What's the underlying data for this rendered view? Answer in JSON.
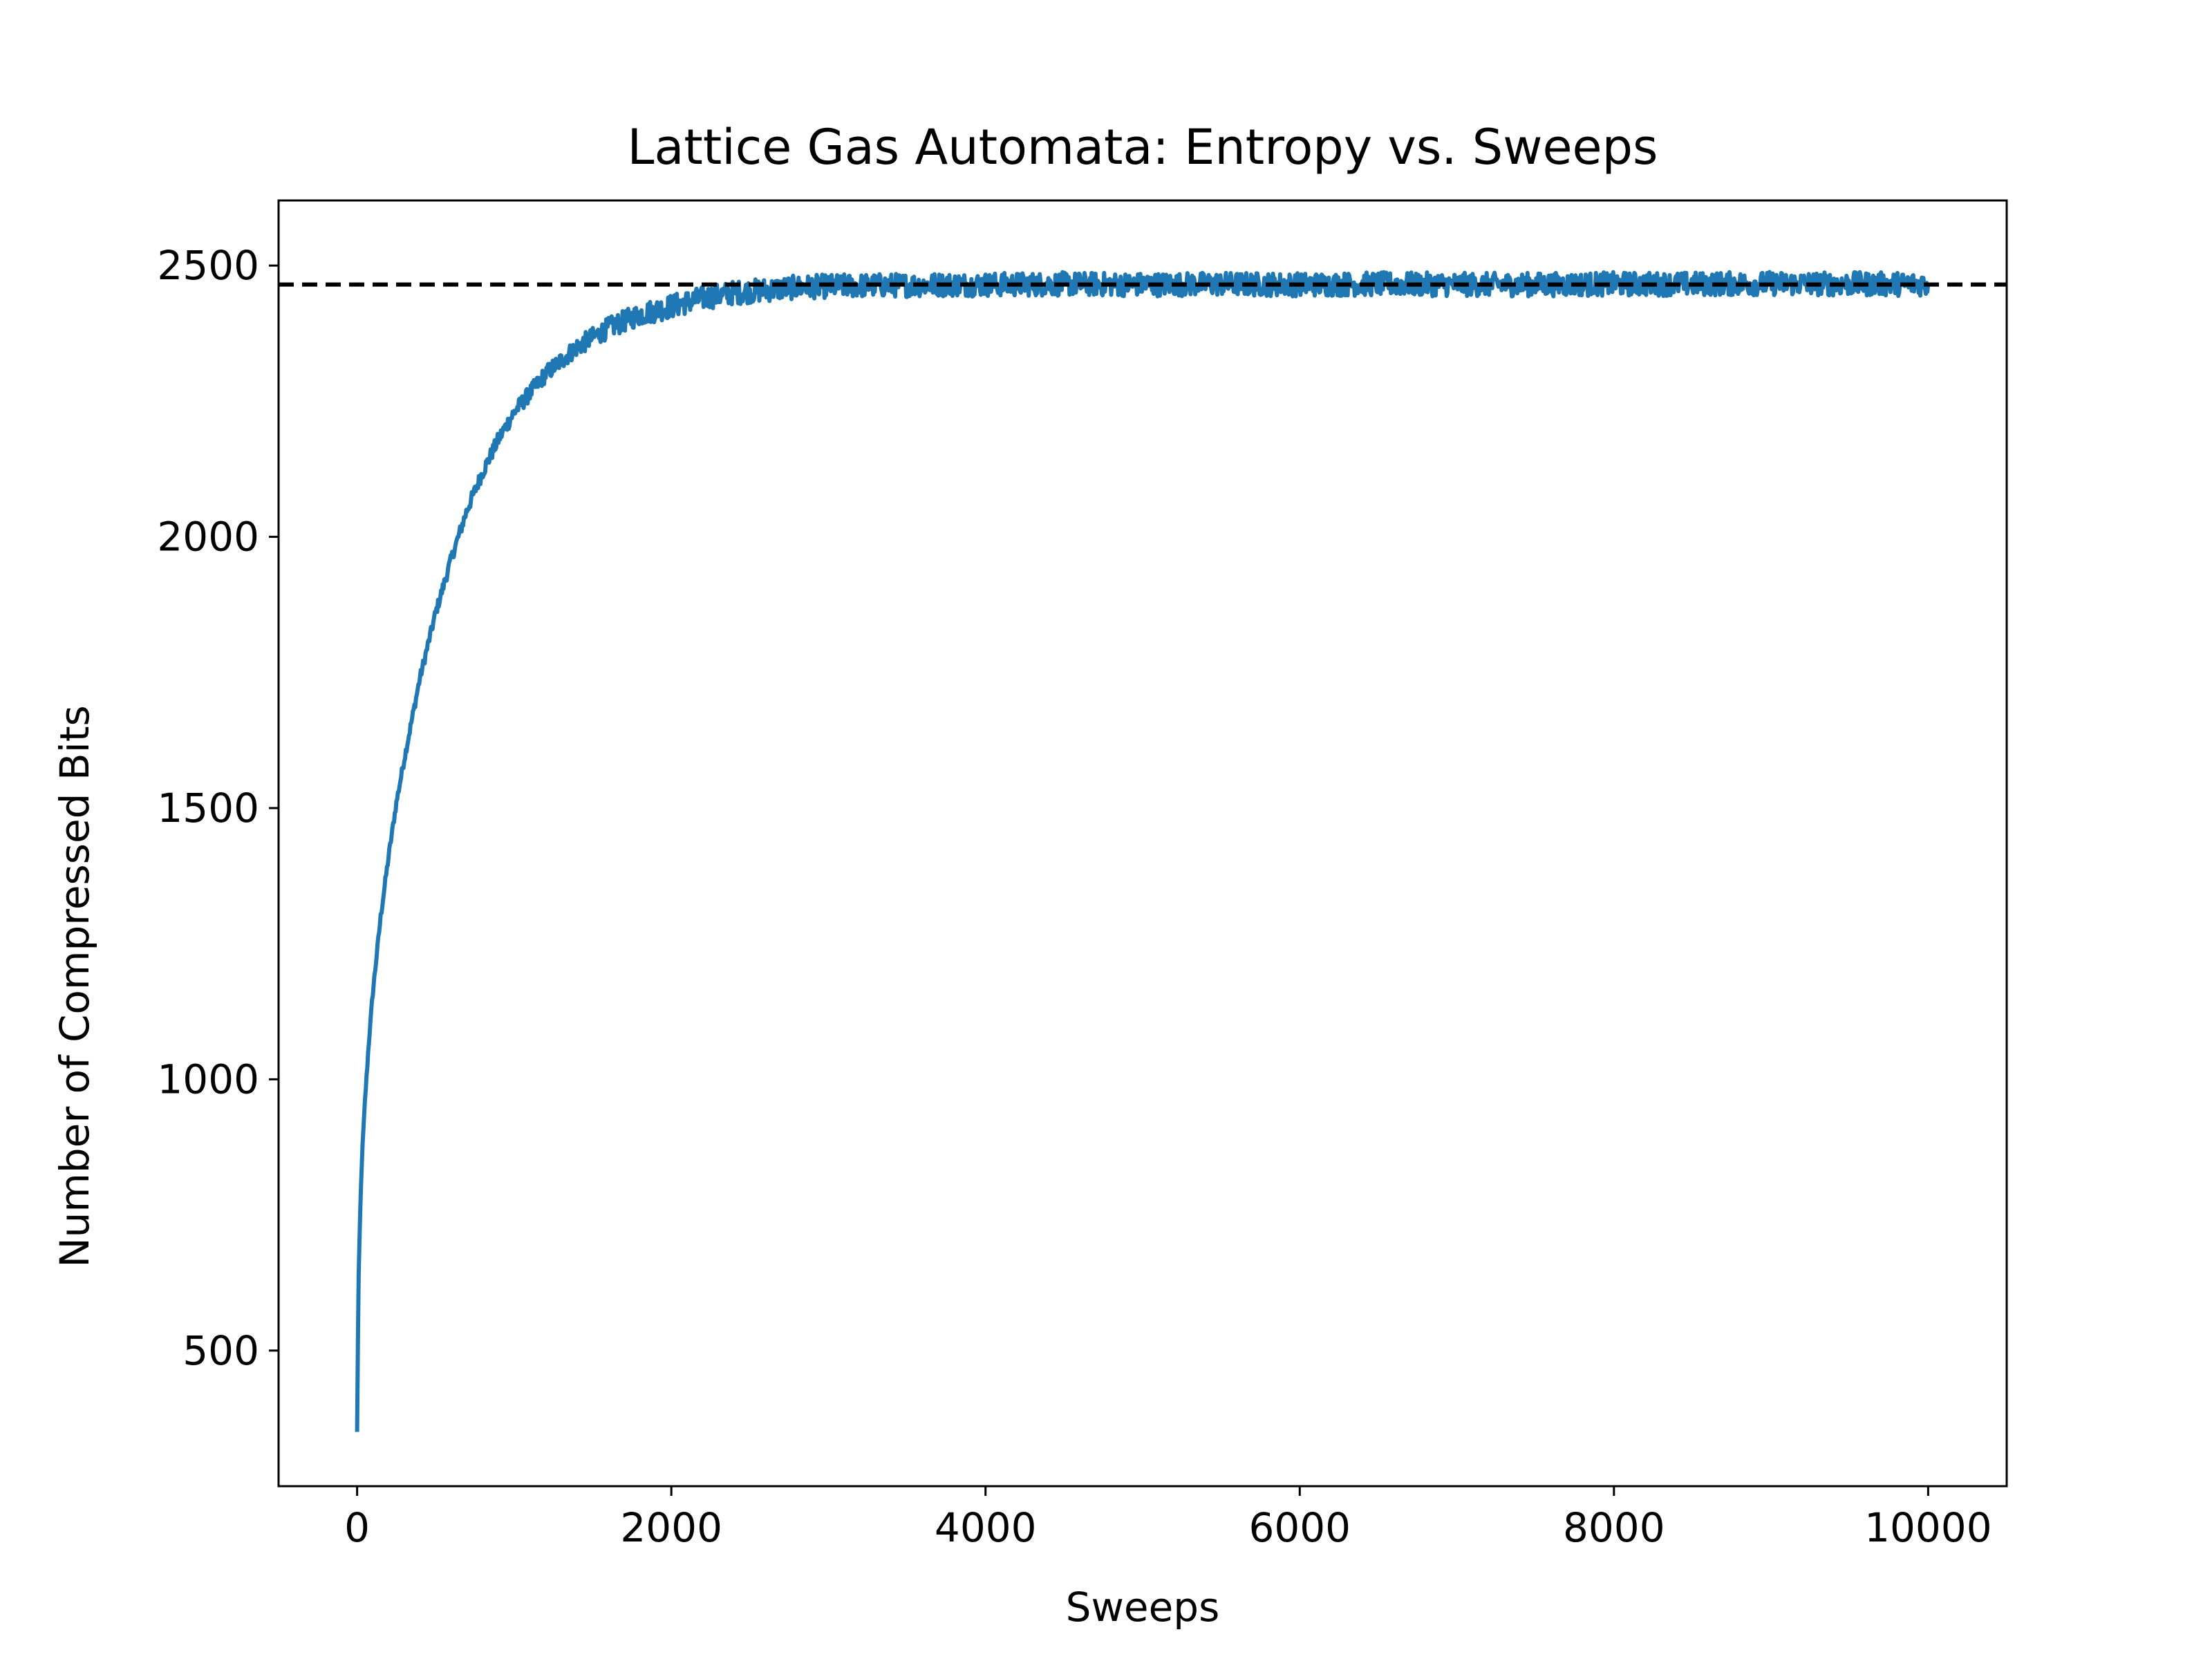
{
  "chart_data": {
    "type": "line",
    "title": "Lattice Gas Automata: Entropy vs. Sweeps",
    "xlabel": "Sweeps",
    "ylabel": "Number of Compressed Bits",
    "xlim": [
      -500,
      10500
    ],
    "ylim": [
      250,
      2620
    ],
    "xticks": [
      0,
      2000,
      4000,
      6000,
      8000,
      10000
    ],
    "xtick_labels": [
      "0",
      "2000",
      "4000",
      "6000",
      "8000",
      "10000"
    ],
    "yticks": [
      500,
      1000,
      1500,
      2000,
      2500
    ],
    "ytick_labels": [
      "500",
      "1000",
      "1500",
      "2000",
      "2500"
    ],
    "grid": false,
    "legend": "none",
    "series": [
      {
        "color": "#1f77b4",
        "style": "solid, noisy",
        "x": [
          0,
          5,
          10,
          20,
          30,
          50,
          75,
          100,
          150,
          200,
          250,
          300,
          400,
          500,
          600,
          700,
          800,
          900,
          1000,
          1200,
          1400,
          1600,
          1800,
          2000,
          2200,
          2400,
          2600,
          2800,
          3000,
          3200,
          3500,
          3700,
          4000,
          4500,
          5000,
          5500,
          6000,
          6500,
          7000,
          7500,
          8000,
          8500,
          9000,
          9500,
          10000
        ],
        "y": [
          350,
          520,
          640,
          760,
          850,
          960,
          1070,
          1160,
          1300,
          1410,
          1510,
          1590,
          1740,
          1860,
          1960,
          2050,
          2120,
          2180,
          2230,
          2300,
          2350,
          2385,
          2410,
          2425,
          2440,
          2450,
          2455,
          2460,
          2462,
          2463,
          2464,
          2465,
          2465,
          2466,
          2465,
          2466,
          2465,
          2466,
          2465,
          2465,
          2466,
          2466,
          2467,
          2466,
          2466
        ]
      }
    ],
    "reference_line": {
      "y": 2465,
      "style": "dashed",
      "color": "#000000"
    }
  }
}
